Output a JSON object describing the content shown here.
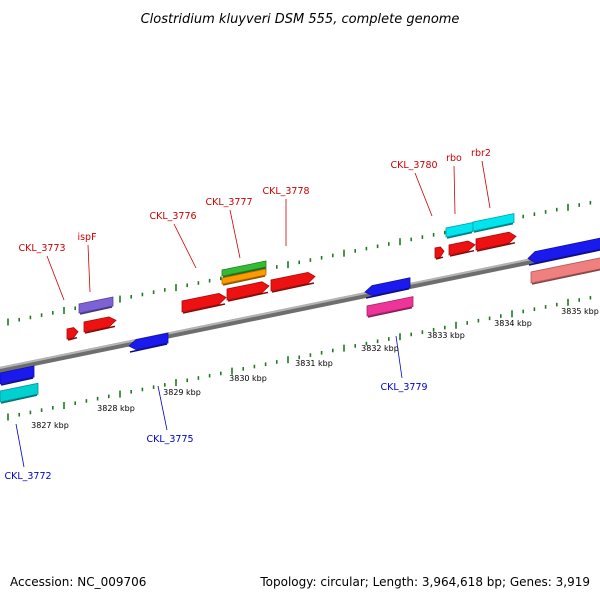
{
  "title": "Clostridium kluyveri DSM 555, complete genome",
  "footer": {
    "accession": "Accession: NC_009706",
    "stats": "Topology: circular; Length: 3,964,618 bp; Genes: 3,919"
  },
  "colors": {
    "axis": "#8a8a8a",
    "ticks": "#1e7a1e",
    "label_top": "#cc0000",
    "label_bottom": "#0000cc"
  },
  "kbp_ticks": [
    {
      "label": "3827 kbp"
    },
    {
      "label": "3828 kbp"
    },
    {
      "label": "3829 kbp"
    },
    {
      "label": "3830 kbp"
    },
    {
      "label": "3831 kbp"
    },
    {
      "label": "3832 kbp"
    },
    {
      "label": "3833 kbp"
    },
    {
      "label": "3834 kbp"
    },
    {
      "label": "3835 kbp"
    }
  ],
  "genes_top": [
    {
      "name": "CKL_3773"
    },
    {
      "name": "ispF"
    },
    {
      "name": "CKL_3776"
    },
    {
      "name": "CKL_3777"
    },
    {
      "name": "CKL_3778"
    },
    {
      "name": "CKL_3780"
    },
    {
      "name": "rbo"
    },
    {
      "name": "rbr2"
    }
  ],
  "genes_bottom": [
    {
      "name": "CKL_3772"
    },
    {
      "name": "CKL_3775"
    },
    {
      "name": "CKL_3779"
    }
  ],
  "features": [
    {
      "color": "#7b63d6"
    },
    {
      "color": "#ee1111"
    },
    {
      "color": "#ee1111"
    },
    {
      "color": "#ee1111"
    },
    {
      "color": "#33bb33"
    },
    {
      "color": "#ff9900"
    },
    {
      "color": "#ee1111"
    },
    {
      "color": "#ee1111"
    },
    {
      "color": "#ee1111"
    },
    {
      "color": "#ee1111"
    },
    {
      "color": "#00e5ee"
    },
    {
      "color": "#00e5ee"
    },
    {
      "color": "#ee1111"
    },
    {
      "color": "#1a1aee"
    },
    {
      "color": "#00d0d0"
    },
    {
      "color": "#1a1aee"
    },
    {
      "color": "#1a1aee"
    },
    {
      "color": "#ee3399"
    },
    {
      "color": "#1a1aee"
    },
    {
      "color": "#f08080"
    }
  ]
}
